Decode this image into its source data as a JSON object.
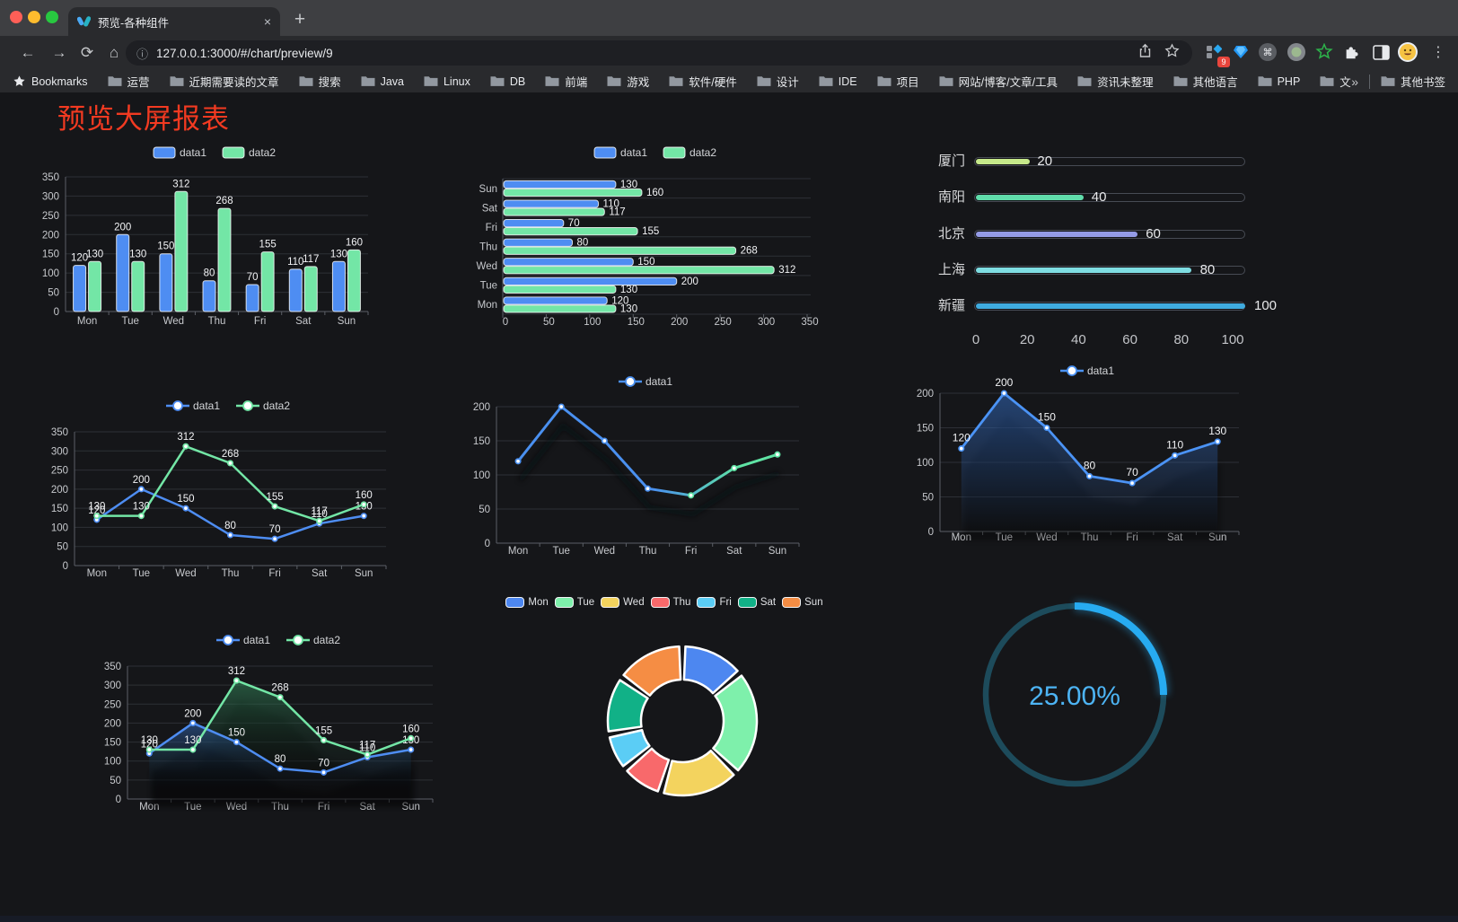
{
  "browser": {
    "tab_title": "预览-各种组件",
    "url": "127.0.0.1:3000/#/chart/preview/9",
    "extension_badge": "9",
    "bookmarks_root": "Bookmarks",
    "bookmarks": [
      "运营",
      "近期需要读的文章",
      "搜索",
      "Java",
      "Linux",
      "DB",
      "前端",
      "游戏",
      "软件/硬件",
      "设计",
      "IDE",
      "项目",
      "网站/博客/文章/工具",
      "资讯未整理",
      "其他语言",
      "PHP",
      "文件服务器"
    ],
    "bookmarks_overflow": "»",
    "other_bookmarks": "其他书签",
    "traffic_light_colors": [
      "#ff5f57",
      "#febc2e",
      "#28c840"
    ],
    "icons": {
      "back": "←",
      "forward": "→",
      "reload": "⟳",
      "home": "⌂",
      "close": "×",
      "plus": "+",
      "menu": "⋮",
      "info": "ⓘ"
    }
  },
  "page": {
    "title": "预览大屏报表",
    "title_color": "#f23a21",
    "background": "#151619"
  },
  "chart_data": [
    {
      "id": "bar-vertical",
      "type": "bar",
      "legend_position": "top",
      "value_labels": true,
      "categories": [
        "Mon",
        "Tue",
        "Wed",
        "Thu",
        "Fri",
        "Sat",
        "Sun"
      ],
      "series": [
        {
          "name": "data1",
          "color": "#4e8df2",
          "values": [
            120,
            200,
            150,
            80,
            70,
            110,
            130
          ]
        },
        {
          "name": "data2",
          "color": "#73e6a6",
          "values": [
            130,
            130,
            312,
            268,
            155,
            117,
            160
          ]
        }
      ],
      "ylim": [
        0,
        350
      ],
      "ytick_step": 50
    },
    {
      "id": "bar-horizontal",
      "type": "bar",
      "orientation": "horizontal",
      "legend_position": "top",
      "value_labels": true,
      "categories": [
        "Mon",
        "Tue",
        "Wed",
        "Thu",
        "Fri",
        "Sat",
        "Sun"
      ],
      "display_order_top_to_bottom": [
        "Sun",
        "Sat",
        "Fri",
        "Thu",
        "Wed",
        "Tue",
        "Mon"
      ],
      "series": [
        {
          "name": "data1",
          "color": "#4e8df2",
          "values": [
            120,
            200,
            150,
            80,
            70,
            110,
            130
          ]
        },
        {
          "name": "data2",
          "color": "#73e6a6",
          "values": [
            130,
            130,
            312,
            268,
            155,
            117,
            160
          ]
        }
      ],
      "xlim": [
        0,
        350
      ],
      "xtick_step": 50
    },
    {
      "id": "progress-bars",
      "type": "bar",
      "orientation": "horizontal",
      "value_labels": true,
      "items": [
        {
          "label": "厦门",
          "value": 20,
          "color": "#c6e98a"
        },
        {
          "label": "南阳",
          "value": 40,
          "color": "#60ddab"
        },
        {
          "label": "北京",
          "value": 60,
          "color": "#949be6"
        },
        {
          "label": "上海",
          "value": 80,
          "color": "#7edde2"
        },
        {
          "label": "新疆",
          "value": 100,
          "color": "#3fabdf"
        }
      ],
      "xlim": [
        0,
        100
      ],
      "xticks": [
        0,
        20,
        40,
        60,
        80,
        100
      ]
    },
    {
      "id": "line-dual",
      "type": "line",
      "legend_position": "top",
      "value_labels": true,
      "markers": "circle",
      "categories": [
        "Mon",
        "Tue",
        "Wed",
        "Thu",
        "Fri",
        "Sat",
        "Sun"
      ],
      "series": [
        {
          "name": "data1",
          "color": "#4e8df2",
          "values": [
            120,
            200,
            150,
            80,
            70,
            110,
            130
          ]
        },
        {
          "name": "data2",
          "color": "#73e6a6",
          "values": [
            130,
            130,
            312,
            268,
            155,
            117,
            160
          ]
        }
      ],
      "ylim": [
        0,
        350
      ],
      "ytick_step": 50
    },
    {
      "id": "line-gradient",
      "type": "line",
      "legend_position": "top",
      "value_labels": false,
      "shadow": true,
      "categories": [
        "Mon",
        "Tue",
        "Wed",
        "Thu",
        "Fri",
        "Sat",
        "Sun"
      ],
      "series": [
        {
          "name": "data1",
          "color": "#4a90f0",
          "gradient_to": "#5fe3a4",
          "values": [
            120,
            200,
            150,
            80,
            70,
            110,
            130
          ]
        }
      ],
      "ylim": [
        0,
        200
      ],
      "ytick_step": 50
    },
    {
      "id": "area-single",
      "type": "area",
      "legend_position": "top",
      "value_labels": true,
      "shadow": true,
      "categories": [
        "Mon",
        "Tue",
        "Wed",
        "Thu",
        "Fri",
        "Sat",
        "Sun"
      ],
      "series": [
        {
          "name": "data1",
          "color": "#4b93f5",
          "area_color": "rgba(47,98,175,0.6)",
          "values": [
            120,
            200,
            150,
            80,
            70,
            110,
            130
          ]
        }
      ],
      "ylim": [
        0,
        200
      ],
      "ytick_step": 50
    },
    {
      "id": "area-dual",
      "type": "area",
      "legend_position": "top",
      "value_labels": true,
      "shadow": true,
      "categories": [
        "Mon",
        "Tue",
        "Wed",
        "Thu",
        "Fri",
        "Sat",
        "Sun"
      ],
      "series": [
        {
          "name": "data1",
          "color": "#4e8df2",
          "area_color": "rgba(52,105,180,0.55)",
          "values": [
            120,
            200,
            150,
            80,
            70,
            110,
            130
          ]
        },
        {
          "name": "data2",
          "color": "#73e6a6",
          "area_color": "rgba(56,150,100,0.5)",
          "values": [
            130,
            130,
            312,
            268,
            155,
            117,
            160
          ]
        }
      ],
      "ylim": [
        0,
        350
      ],
      "ytick_step": 50
    },
    {
      "id": "donut",
      "type": "pie",
      "inner_radius_ratio": 0.55,
      "legend_position": "top",
      "categories": [
        "Mon",
        "Tue",
        "Wed",
        "Thu",
        "Fri",
        "Sat",
        "Sun"
      ],
      "values": [
        120,
        200,
        150,
        80,
        70,
        110,
        130
      ],
      "colors": [
        "#4d87f0",
        "#7ef0ab",
        "#f3d35e",
        "#f8696b",
        "#5bcdf5",
        "#11b187",
        "#f58d44"
      ]
    },
    {
      "id": "gauge",
      "type": "gauge",
      "value": 25,
      "max": 100,
      "display": "25.00%",
      "color": "#27abf1",
      "track_color": "#1d4b5b",
      "text_color": "#4db4f4"
    }
  ]
}
